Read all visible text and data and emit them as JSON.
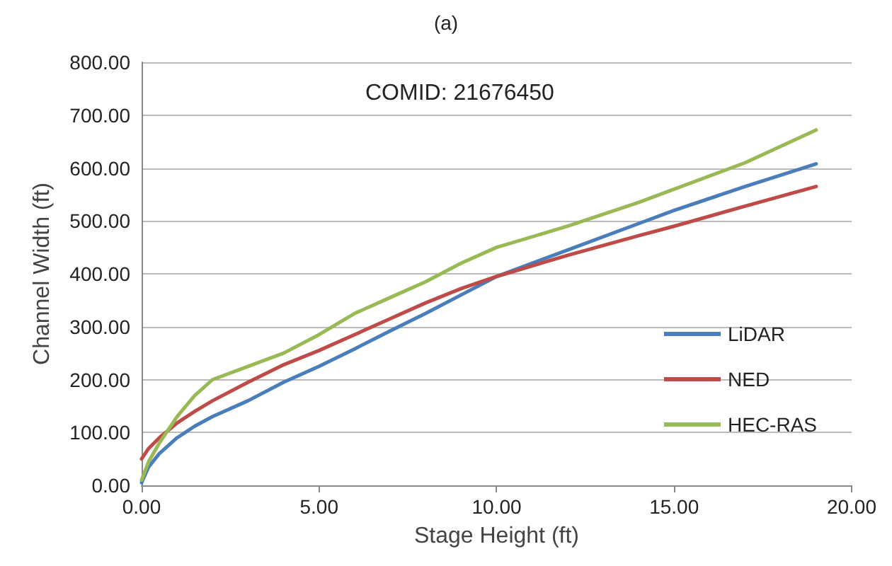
{
  "chart_data": {
    "type": "line",
    "title": "(a)",
    "xlabel": "Stage Height (ft)",
    "ylabel": "Channel Width (ft)",
    "annotations": [
      "COMID: 21676450"
    ],
    "xlim": [
      0,
      20
    ],
    "xticks": [
      {
        "value": 0,
        "label": "0.00"
      },
      {
        "value": 5,
        "label": "5.00"
      },
      {
        "value": 10,
        "label": "10.00"
      },
      {
        "value": 15,
        "label": "15.00"
      },
      {
        "value": 20,
        "label": "20.00"
      }
    ],
    "ylim": [
      0,
      800
    ],
    "yticks": [
      {
        "value": 0,
        "label": "0.00"
      },
      {
        "value": 100,
        "label": "100.00"
      },
      {
        "value": 200,
        "label": "200.00"
      },
      {
        "value": 300,
        "label": "300.00"
      },
      {
        "value": 400,
        "label": "400.00"
      },
      {
        "value": 500,
        "label": "500.00"
      },
      {
        "value": 600,
        "label": "600.00"
      },
      {
        "value": 700,
        "label": "700.00"
      },
      {
        "value": 800,
        "label": "800.00"
      }
    ],
    "grid": "y",
    "legend": "bottom right",
    "marker": "none",
    "line_style": "solid",
    "series": [
      {
        "name": "LiDAR",
        "color": "#4a7ebb",
        "x": [
          0,
          0.2,
          0.5,
          1,
          1.5,
          2,
          3,
          4,
          5,
          6,
          7,
          8,
          9,
          10,
          12,
          14,
          15,
          17,
          19
        ],
        "values": [
          5,
          35,
          60,
          90,
          112,
          130,
          160,
          195,
          225,
          258,
          292,
          325,
          360,
          395,
          445,
          495,
          520,
          565,
          608
        ]
      },
      {
        "name": "NED",
        "color": "#be4b48",
        "x": [
          0,
          0.2,
          0.5,
          1,
          1.5,
          2,
          3,
          4,
          5,
          6,
          7,
          8,
          9,
          10,
          12,
          14,
          15,
          17,
          19
        ],
        "values": [
          50,
          70,
          90,
          118,
          140,
          160,
          195,
          228,
          255,
          285,
          315,
          345,
          372,
          395,
          435,
          472,
          490,
          528,
          565
        ]
      },
      {
        "name": "HEC-RAS",
        "color": "#98b954",
        "x": [
          0,
          0.2,
          0.5,
          1,
          1.5,
          2,
          3,
          4,
          5,
          6,
          7,
          8,
          9,
          10,
          12,
          14,
          15,
          17,
          19
        ],
        "values": [
          10,
          45,
          80,
          130,
          170,
          200,
          225,
          250,
          285,
          325,
          355,
          385,
          420,
          450,
          490,
          535,
          560,
          610,
          672
        ]
      }
    ]
  }
}
